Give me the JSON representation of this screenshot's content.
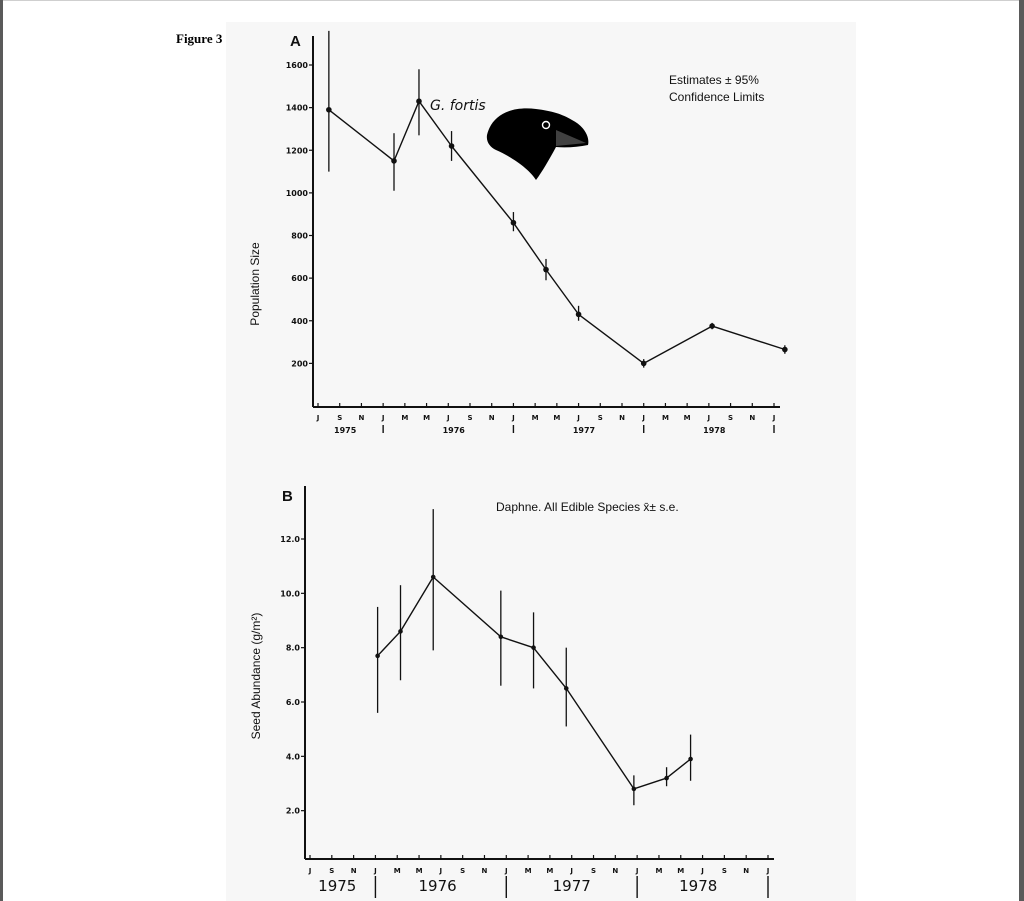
{
  "figure_label": "Figure 3",
  "colors": {
    "ink": "#111111",
    "background": "#f7f7f7"
  },
  "chart_data": [
    {
      "panel": "A",
      "type": "line",
      "xlabel": "",
      "ylabel": "Population Size",
      "ylim": [
        0,
        1700
      ],
      "yticks": [
        200,
        400,
        600,
        800,
        1000,
        1200,
        1400,
        1600
      ],
      "ytick_labels": [
        "200",
        "400",
        "600",
        "800",
        "1000",
        "1200",
        "1400",
        "1600"
      ],
      "xlim": [
        0,
        42
      ],
      "month_ticks": [
        {
          "x": 0,
          "label": "J"
        },
        {
          "x": 2,
          "label": "S"
        },
        {
          "x": 4,
          "label": "N"
        },
        {
          "x": 6,
          "label": "J"
        },
        {
          "x": 8,
          "label": "M"
        },
        {
          "x": 10,
          "label": "M"
        },
        {
          "x": 12,
          "label": "J"
        },
        {
          "x": 14,
          "label": "S"
        },
        {
          "x": 16,
          "label": "N"
        },
        {
          "x": 18,
          "label": "J"
        },
        {
          "x": 20,
          "label": "M"
        },
        {
          "x": 22,
          "label": "M"
        },
        {
          "x": 24,
          "label": "J"
        },
        {
          "x": 26,
          "label": "S"
        },
        {
          "x": 28,
          "label": "N"
        },
        {
          "x": 30,
          "label": "J"
        },
        {
          "x": 32,
          "label": "M"
        },
        {
          "x": 34,
          "label": "M"
        },
        {
          "x": 36,
          "label": "J"
        },
        {
          "x": 38,
          "label": "S"
        },
        {
          "x": 40,
          "label": "N"
        },
        {
          "x": 42,
          "label": "J"
        }
      ],
      "year_labels": [
        {
          "x": 2.5,
          "label": "1975"
        },
        {
          "x": 12.5,
          "label": "1976"
        },
        {
          "x": 24.5,
          "label": "1977"
        },
        {
          "x": 36.5,
          "label": "1978"
        }
      ],
      "year_separators": [
        6,
        18,
        30,
        42
      ],
      "x": [
        1,
        7,
        9.3,
        12.3,
        18,
        21,
        24,
        30,
        36.3,
        43
      ],
      "values": [
        1390,
        1150,
        1430,
        1220,
        860,
        640,
        430,
        200,
        375,
        265
      ],
      "ci_low": [
        1100,
        1010,
        1270,
        1150,
        820,
        590,
        400,
        180,
        360,
        245
      ],
      "ci_high": [
        1760,
        1280,
        1580,
        1290,
        910,
        690,
        470,
        220,
        390,
        285
      ],
      "annotations": [
        "Estimates  ± 95%",
        "Confidence Limits"
      ],
      "species_label": "G. fortis"
    },
    {
      "panel": "B",
      "type": "line",
      "xlabel": "",
      "ylabel": "Seed Abundance (g/m²)",
      "ylim": [
        0,
        13
      ],
      "yticks": [
        2,
        4,
        6,
        8,
        10,
        12
      ],
      "ytick_labels": [
        "2.0",
        "4.0",
        "6.0",
        "8.0",
        "10.0",
        "12.0"
      ],
      "xlim": [
        0,
        42
      ],
      "month_ticks": [
        {
          "x": 0,
          "label": "J"
        },
        {
          "x": 2,
          "label": "S"
        },
        {
          "x": 4,
          "label": "N"
        },
        {
          "x": 6,
          "label": "J"
        },
        {
          "x": 8,
          "label": "M"
        },
        {
          "x": 10,
          "label": "M"
        },
        {
          "x": 12,
          "label": "J"
        },
        {
          "x": 14,
          "label": "S"
        },
        {
          "x": 16,
          "label": "N"
        },
        {
          "x": 18,
          "label": "J"
        },
        {
          "x": 20,
          "label": "M"
        },
        {
          "x": 22,
          "label": "M"
        },
        {
          "x": 24,
          "label": "J"
        },
        {
          "x": 26,
          "label": "S"
        },
        {
          "x": 28,
          "label": "N"
        },
        {
          "x": 30,
          "label": "J"
        },
        {
          "x": 32,
          "label": "M"
        },
        {
          "x": 34,
          "label": "M"
        },
        {
          "x": 36,
          "label": "J"
        },
        {
          "x": 38,
          "label": "S"
        },
        {
          "x": 40,
          "label": "N"
        },
        {
          "x": 42,
          "label": "J"
        }
      ],
      "year_labels": [
        {
          "x": 2.5,
          "label": "1975"
        },
        {
          "x": 11.7,
          "label": "1976"
        },
        {
          "x": 24,
          "label": "1977"
        },
        {
          "x": 35.6,
          "label": "1978"
        }
      ],
      "year_separators": [
        6,
        18,
        30,
        42
      ],
      "x": [
        6.2,
        8.3,
        11.3,
        17.5,
        20.5,
        23.5,
        29.7,
        32.7,
        34.9
      ],
      "values": [
        7.7,
        8.6,
        10.6,
        8.4,
        8.0,
        6.5,
        2.8,
        3.2,
        3.9
      ],
      "ci_low": [
        5.6,
        6.8,
        7.9,
        6.6,
        6.5,
        5.1,
        2.2,
        2.9,
        3.1
      ],
      "ci_high": [
        9.5,
        10.3,
        13.1,
        10.1,
        9.3,
        8.0,
        3.3,
        3.6,
        4.8
      ],
      "annotations": [
        "Daphne. All Edible Species x̄± s.e."
      ]
    }
  ]
}
